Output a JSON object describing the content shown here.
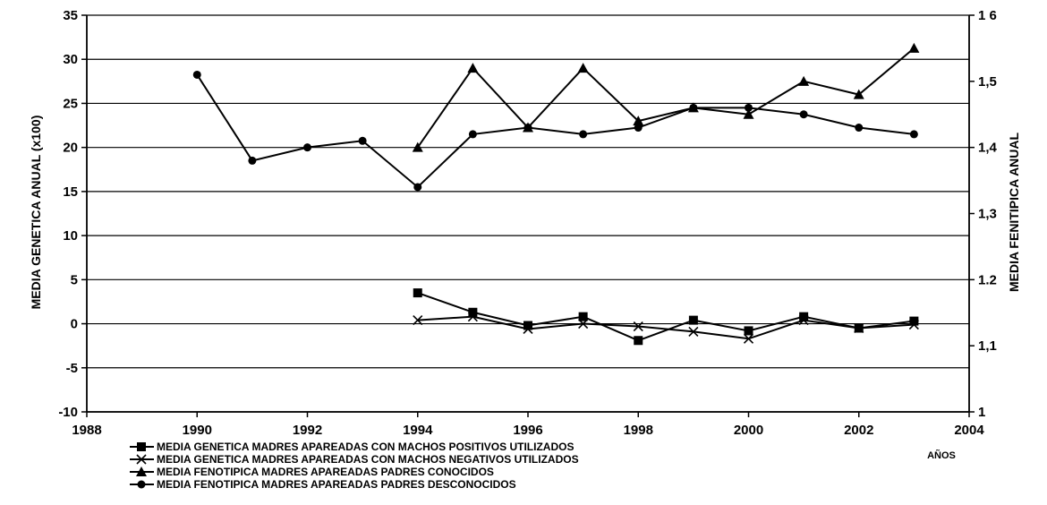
{
  "chart_data": {
    "type": "line",
    "xlabel": "AÑOS",
    "ylabel_left": "MEDIA GENETICA ANUAL (x100)",
    "ylabel_right": "MEDIA FENITIPICA ANUAL",
    "xlim": [
      1988,
      2004
    ],
    "x_ticks": [
      "1988",
      "1990",
      "1992",
      "1994",
      "1996",
      "1998",
      "2000",
      "2002",
      "2004"
    ],
    "ylim_left": [
      -10,
      35
    ],
    "y_left_ticks": [
      "-10",
      "-5",
      "0",
      "5",
      "10",
      "15",
      "20",
      "25",
      "30",
      "35"
    ],
    "ylim_right": [
      1.0,
      1.6
    ],
    "y_right_ticks": [
      "1",
      "1,1",
      "1.2",
      "1,3",
      "1,4",
      "1,5",
      "1 6"
    ],
    "grid": "horizontal",
    "legend_position": "bottom",
    "series": [
      {
        "name": "MEDIA GENETICA  MADRES APAREADAS CON MACHOS POSITIVOS  UTILIZADOS",
        "marker": "square",
        "axis": "left",
        "x": [
          1994,
          1995,
          1996,
          1997,
          1998,
          1999,
          2000,
          2001,
          2002,
          2003
        ],
        "y": [
          3.5,
          1.3,
          -0.2,
          0.8,
          -1.9,
          0.4,
          -0.8,
          0.8,
          -0.5,
          0.3
        ]
      },
      {
        "name": "MEDIA GENETICA MADRES APAREADAS CON MACHOS NEGATIVOS UTILIZADOS",
        "marker": "x",
        "axis": "left",
        "x": [
          1994,
          1995,
          1996,
          1997,
          1998,
          1999,
          2000,
          2001,
          2002,
          2003
        ],
        "y": [
          0.4,
          0.8,
          -0.6,
          0.0,
          -0.3,
          -0.9,
          -1.7,
          0.4,
          -0.5,
          -0.1
        ]
      },
      {
        "name": "MEDIA FENOTIPICA MADRES APAREADAS PADRES CONOCIDOS",
        "marker": "triangle",
        "axis": "right",
        "x": [
          1994,
          1995,
          1996,
          1997,
          1998,
          1999,
          2000,
          2001,
          2002,
          2003
        ],
        "y": [
          1.4,
          1.52,
          1.43,
          1.52,
          1.44,
          1.46,
          1.45,
          1.5,
          1.48,
          1.55
        ]
      },
      {
        "name": "MEDIA FENOTIPICA MADRES APAREADAS PADRES DESCONOCIDOS",
        "marker": "circle",
        "axis": "right",
        "x": [
          1990,
          1991,
          1992,
          1993,
          1994,
          1995,
          1996,
          1997,
          1998,
          1999,
          2000,
          2001,
          2002,
          2003
        ],
        "y": [
          1.51,
          1.38,
          1.4,
          1.41,
          1.34,
          1.42,
          1.43,
          1.42,
          1.43,
          1.46,
          1.46,
          1.45,
          1.43,
          1.42
        ]
      }
    ]
  }
}
